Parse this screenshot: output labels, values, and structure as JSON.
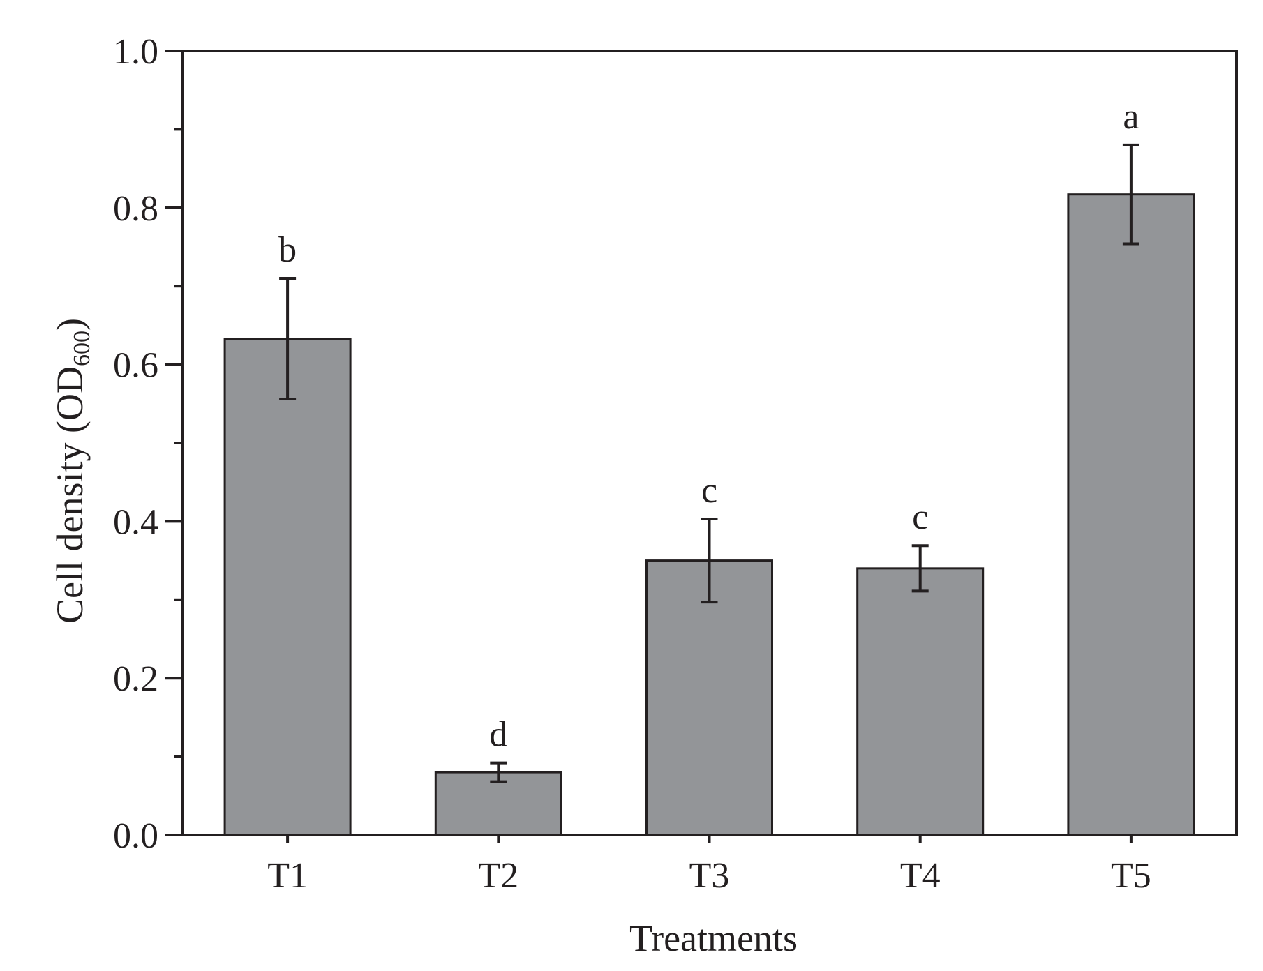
{
  "chart_data": {
    "type": "bar",
    "title": "",
    "xlabel": "Treatments",
    "ylabel": {
      "prefix": "Cell density (OD",
      "subscript": "600",
      "suffix": ")"
    },
    "ylim": [
      0,
      1.0
    ],
    "y_major_ticks": [
      0.0,
      0.2,
      0.4,
      0.6,
      0.8,
      1.0
    ],
    "y_tick_labels": [
      "0.0",
      "0.2",
      "0.4",
      "0.6",
      "0.8",
      "1.0"
    ],
    "y_minor_ticks": [
      0.1,
      0.3,
      0.5,
      0.7,
      0.9
    ],
    "categories": [
      "T1",
      "T2",
      "T3",
      "T4",
      "T5"
    ],
    "values": [
      0.633,
      0.08,
      0.35,
      0.34,
      0.817
    ],
    "error": [
      0.077,
      0.012,
      0.053,
      0.029,
      0.063
    ],
    "significance_letters": [
      "b",
      "d",
      "c",
      "c",
      "a"
    ],
    "grid": false,
    "legend": "none",
    "colors": {
      "bar_fill": "#939598",
      "bar_stroke": "#231f20",
      "axis": "#231f20",
      "text": "#231f20"
    }
  }
}
